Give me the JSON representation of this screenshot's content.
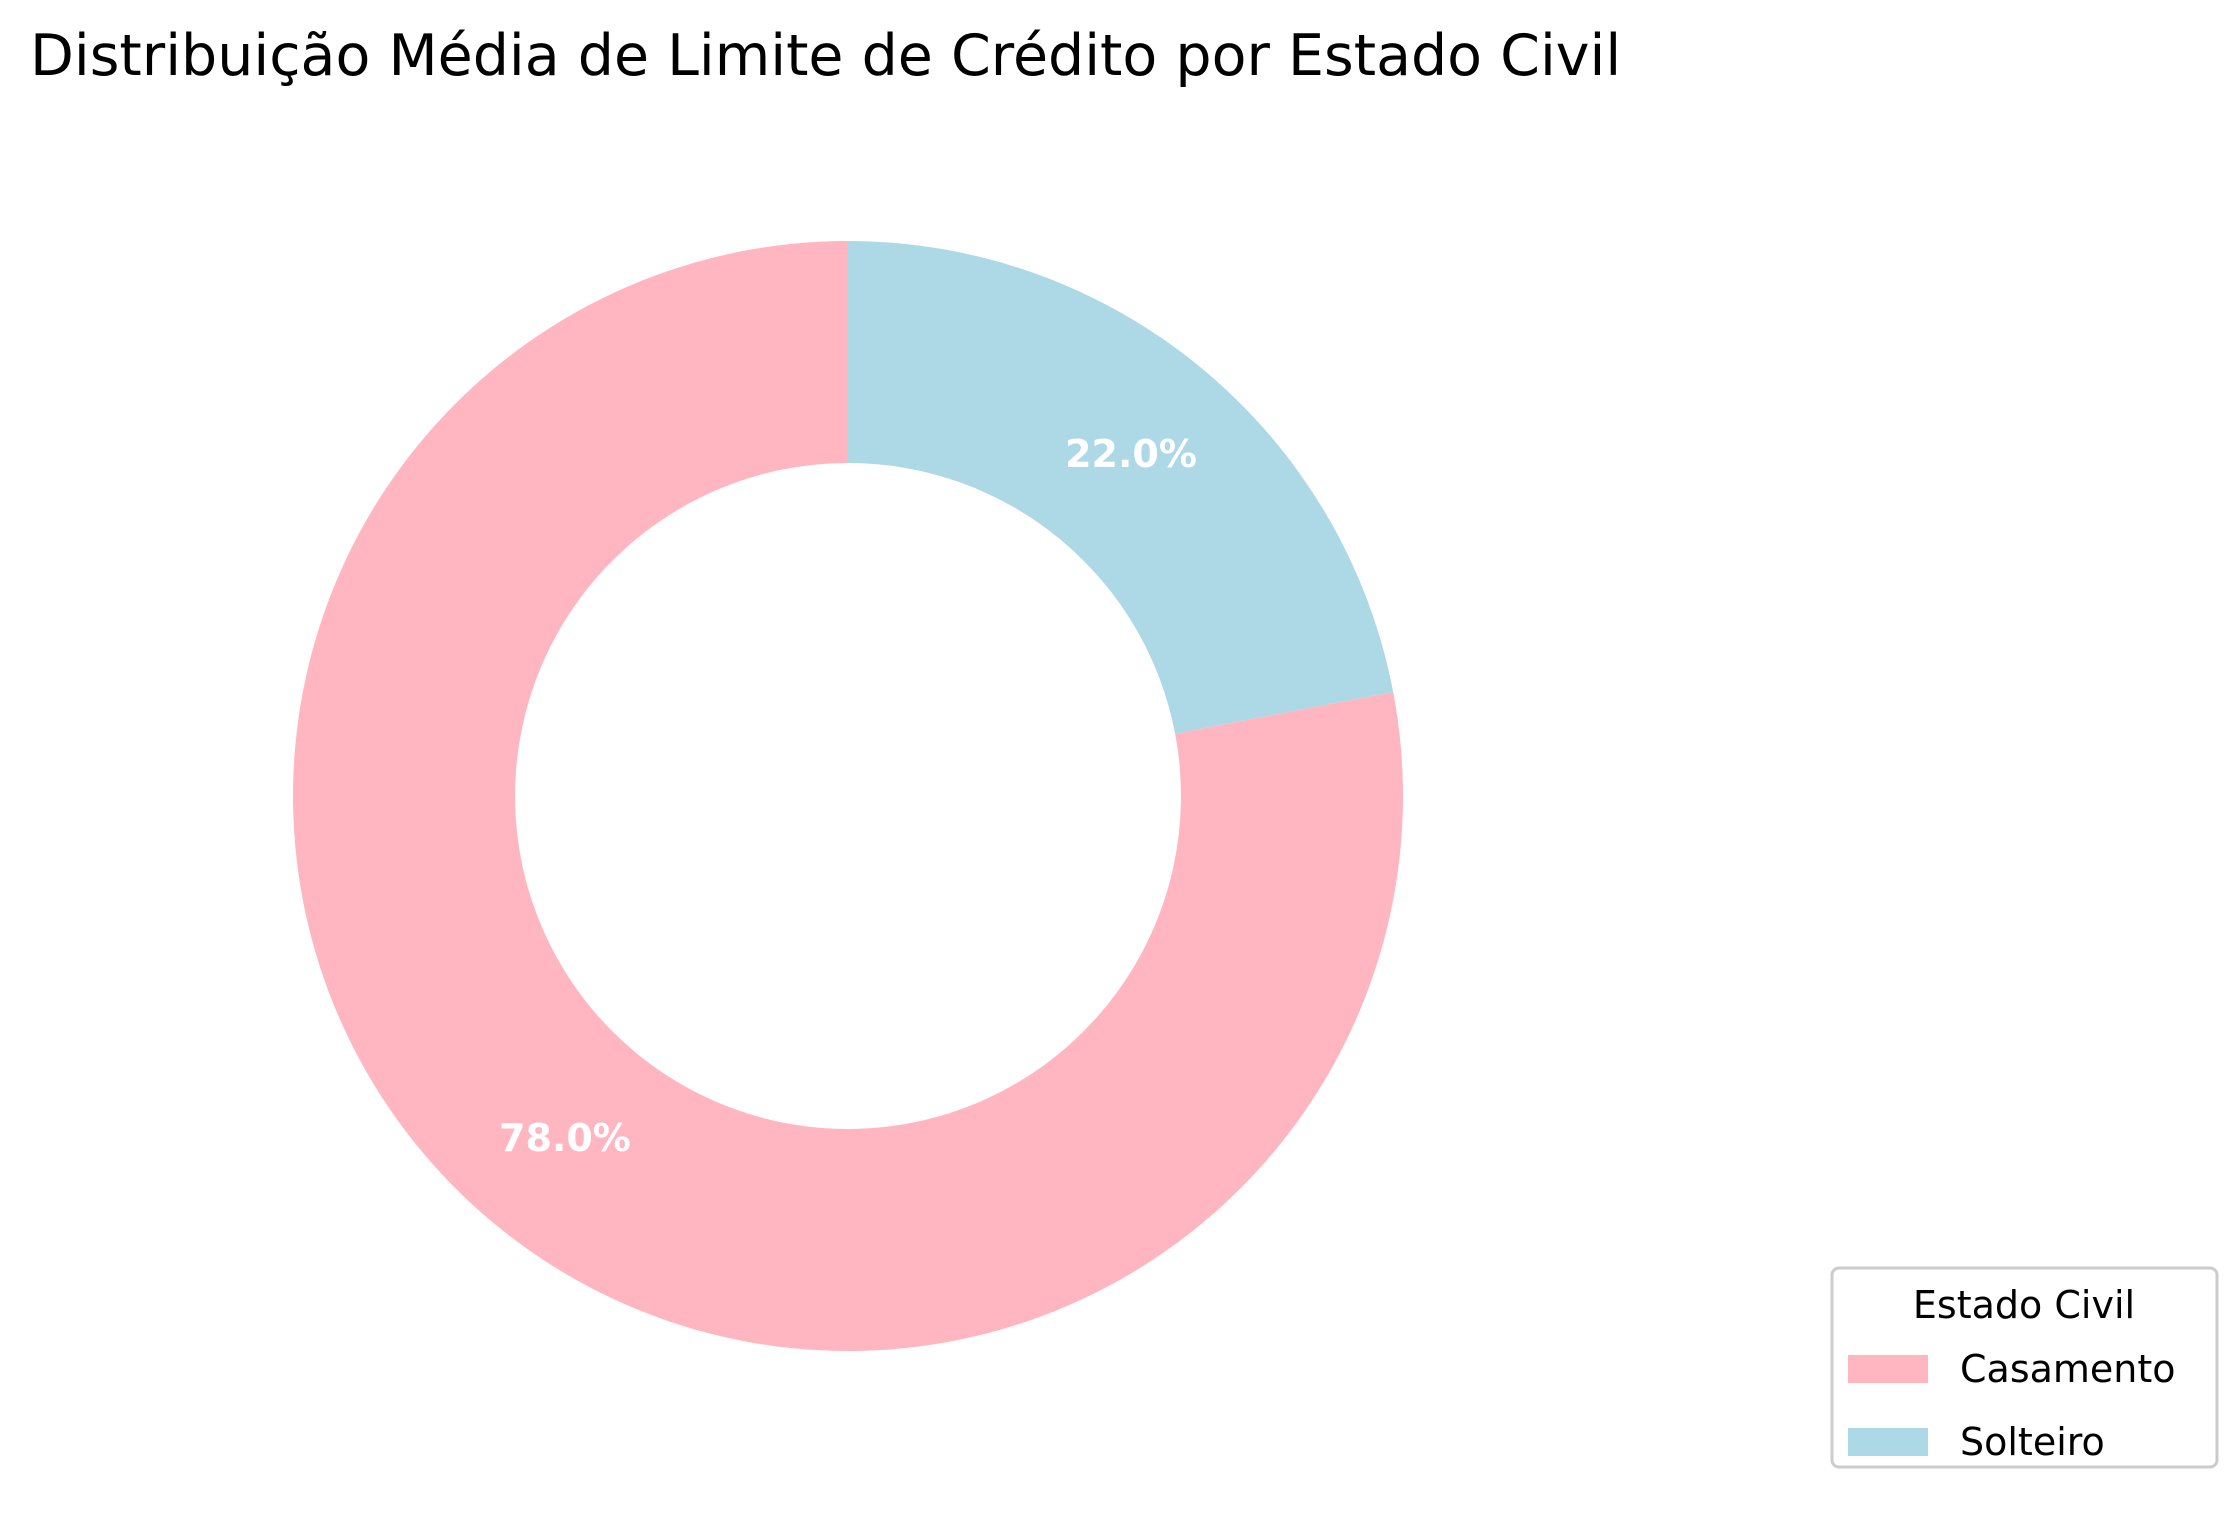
{
  "chart_data": {
    "type": "pie",
    "variant": "donut",
    "title": "Distribuição Média de Limite de Crédito por Estado Civil",
    "slices": [
      {
        "label": "Casamento",
        "value": 78.0,
        "display": "78.0%",
        "color": "#ffb6c1"
      },
      {
        "label": "Solteiro",
        "value": 22.0,
        "display": "22.0%",
        "color": "#add8e6"
      }
    ],
    "label_color": "#ffffff",
    "legend": {
      "title": "Estado Civil",
      "placement": "bottom-right"
    }
  }
}
